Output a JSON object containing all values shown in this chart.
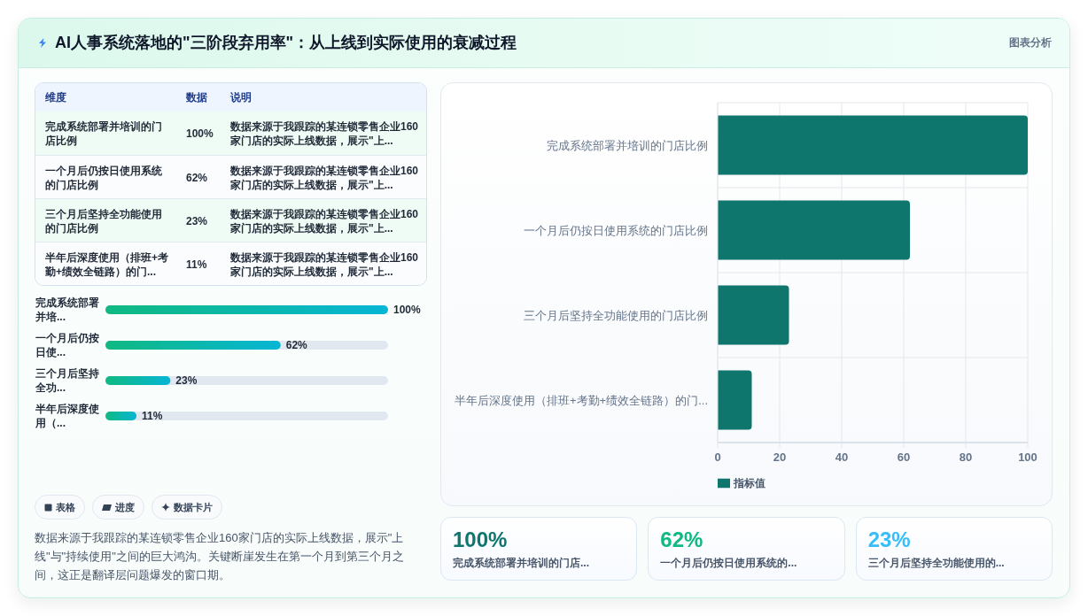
{
  "chart_data": [
    {
      "type": "other",
      "title": "AI人事系统落地的\"三阶段弃用率\"：从上线到实际使用的衰减过程",
      "annotations": [
        "图表分析"
      ]
    },
    {
      "type": "other",
      "annotations": [
        "维度",
        "数据",
        "说明",
        "完成系统部署并培训的门店比例",
        "100%",
        "数据来源于我跟踪的某连锁零售企业160家门店的实际上线数据，展示\"上...",
        "一个月后仍按日使用系统的门店比例",
        "62%",
        "数据来源于我跟踪的某连锁零售企业160家门店的实际上线数据，展示\"上...",
        "三个月后坚持全功能使用的门店比例",
        "23%",
        "数据来源于我跟踪的某连锁零售企业160家门店的实际上线数据，展示\"上...",
        "半年后深度使用（排班+考勤+绩效全链路）的门...",
        "11%",
        "数据来源于我跟踪的某连锁零售企业160家门店的实际上线数据，展示\"上..."
      ]
    },
    {
      "type": "bar",
      "orientation": "horizontal",
      "categories": [
        "完成系统部署并培...",
        "一个月后仍按日使...",
        "三个月后坚持全功...",
        "半年后深度使用（..."
      ],
      "values": [
        100,
        62,
        23,
        11
      ],
      "value_labels": [
        "100%",
        "62%",
        "23%",
        "11%"
      ],
      "color": "#10b981",
      "tick_labels": "y",
      "annotations": [
        "表格",
        "进度",
        "数据卡片",
        "数据来源于我跟踪的某连锁零售企业160家门店的实际上线数据，展示\"上线\"与\"持续使用\"之间的巨大鸿沟。关键断崖发生在第一个月到第三个月之间，这正是翻译层问题爆发的窗口期。"
      ]
    },
    {
      "type": "bar",
      "orientation": "horizontal",
      "categories": [
        "完成系统部署并培训的门店比例",
        "一个月后仍按日使用系统的门店比例",
        "三个月后坚持全功能使用的门店比例",
        "半年后深度使用（排班+考勤+绩效全链路）的门..."
      ],
      "series": [
        {
          "name": "指标值",
          "color": "#0f766e",
          "values": [
            100,
            62,
            23,
            11
          ]
        }
      ],
      "xlim": [
        0,
        100
      ],
      "xticks": [
        0,
        20,
        40,
        60,
        80,
        100
      ],
      "grid": true,
      "legend": "bottom left"
    },
    {
      "type": "other",
      "annotations": [
        "100%",
        "完成系统部署并培训的门店...",
        "62%",
        "一个月后仍按日使用系统的...",
        "23%",
        "三个月后坚持全功能使用的..."
      ],
      "colors": [
        "#0f766e",
        "#10b981",
        "#38bdf8"
      ]
    }
  ]
}
